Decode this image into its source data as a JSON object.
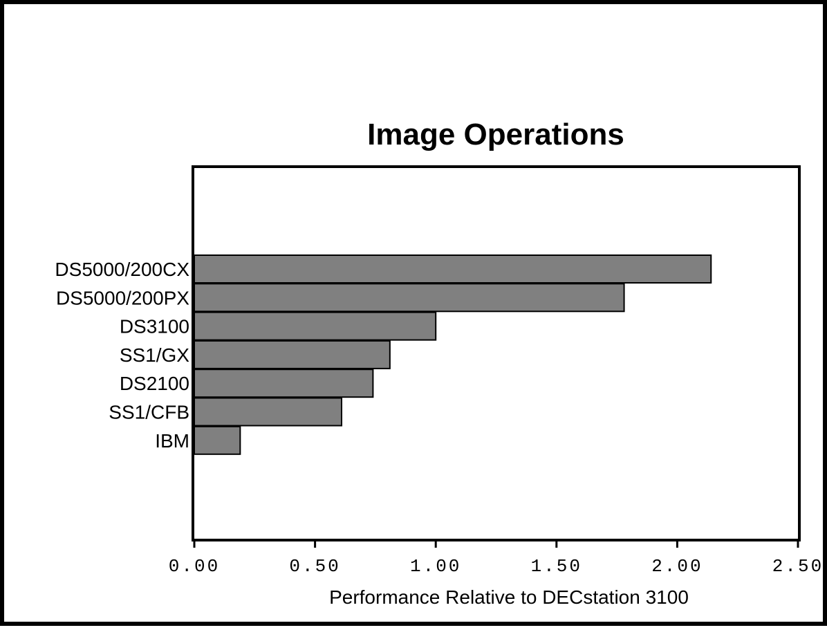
{
  "chart_data": {
    "type": "bar",
    "orientation": "horizontal",
    "title": "Image Operations",
    "xlabel": "Performance Relative to DECstation 3100",
    "ylabel": "",
    "categories": [
      "DS5000/200CX",
      "DS5000/200PX",
      "DS3100",
      "SS1/GX",
      "DS2100",
      "SS1/CFB",
      "IBM"
    ],
    "values": [
      2.14,
      1.78,
      1.0,
      0.81,
      0.74,
      0.61,
      0.19
    ],
    "xlim": [
      0,
      2.5
    ],
    "xticks": [
      "0.00",
      "0.50",
      "1.00",
      "1.50",
      "2.00",
      "2.50"
    ],
    "grid": false,
    "legend": "none",
    "bar_color": "#808080"
  }
}
